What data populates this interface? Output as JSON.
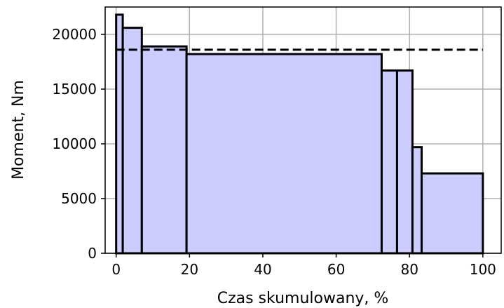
{
  "chart_data": {
    "type": "bar",
    "title": "",
    "xlabel": "Czas skumulowany, %",
    "ylabel": "Moment, Nm",
    "xlim": [
      -3,
      105
    ],
    "ylim": [
      0,
      22500
    ],
    "xticks": [
      0,
      20,
      40,
      60,
      80,
      100
    ],
    "yticks": [
      0,
      5000,
      10000,
      15000,
      20000
    ],
    "xtick_labels": [
      "0",
      "20",
      "40",
      "60",
      "80",
      "100"
    ],
    "ytick_labels": [
      "0",
      "5000",
      "10000",
      "15000",
      "20000"
    ],
    "grid": true,
    "bar_fill_color": "#ccccff",
    "bar_edge_color": "#000000",
    "series": [
      {
        "bins": [
          {
            "x_start": 0.0,
            "x_end": 1.8,
            "value": 21800
          },
          {
            "x_start": 1.8,
            "x_end": 7.0,
            "value": 20600
          },
          {
            "x_start": 7.0,
            "x_end": 19.2,
            "value": 18900
          },
          {
            "x_start": 19.2,
            "x_end": 72.4,
            "value": 18200
          },
          {
            "x_start": 72.4,
            "x_end": 76.6,
            "value": 16700
          },
          {
            "x_start": 76.6,
            "x_end": 80.8,
            "value": 16700
          },
          {
            "x_start": 80.8,
            "x_end": 83.3,
            "value": 9700
          },
          {
            "x_start": 83.3,
            "x_end": 100.0,
            "value": 7300
          }
        ]
      }
    ],
    "reference_line": {
      "y": 18600,
      "x_start": 0,
      "x_end": 100,
      "style": "dashed",
      "color": "#000000"
    }
  }
}
